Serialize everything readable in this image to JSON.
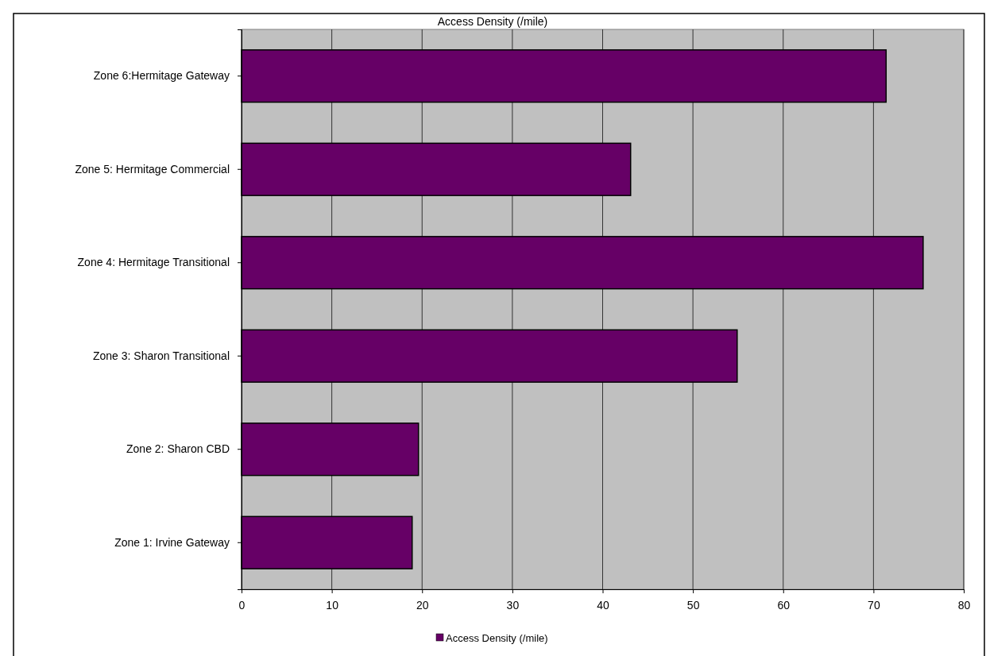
{
  "chart_data": {
    "type": "bar",
    "orientation": "horizontal",
    "title": "Access Density (/mile)",
    "categories": [
      "Zone 6:Hermitage Gateway",
      "Zone 5: Hermitage Commercial",
      "Zone 4: Hermitage Transitional",
      "Zone 3: Sharon Transitional",
      "Zone 2: Sharon CBD",
      "Zone 1: Irvine Gateway"
    ],
    "series": [
      {
        "name": "Access Density (/mile)",
        "color": "#660066",
        "values": [
          71.4,
          43.1,
          75.5,
          54.9,
          19.6,
          18.9
        ]
      }
    ],
    "xlim": [
      0,
      80
    ],
    "xticks": [
      0,
      10,
      20,
      30,
      40,
      50,
      60,
      70,
      80
    ],
    "grid": "x",
    "legend": "bottom"
  }
}
